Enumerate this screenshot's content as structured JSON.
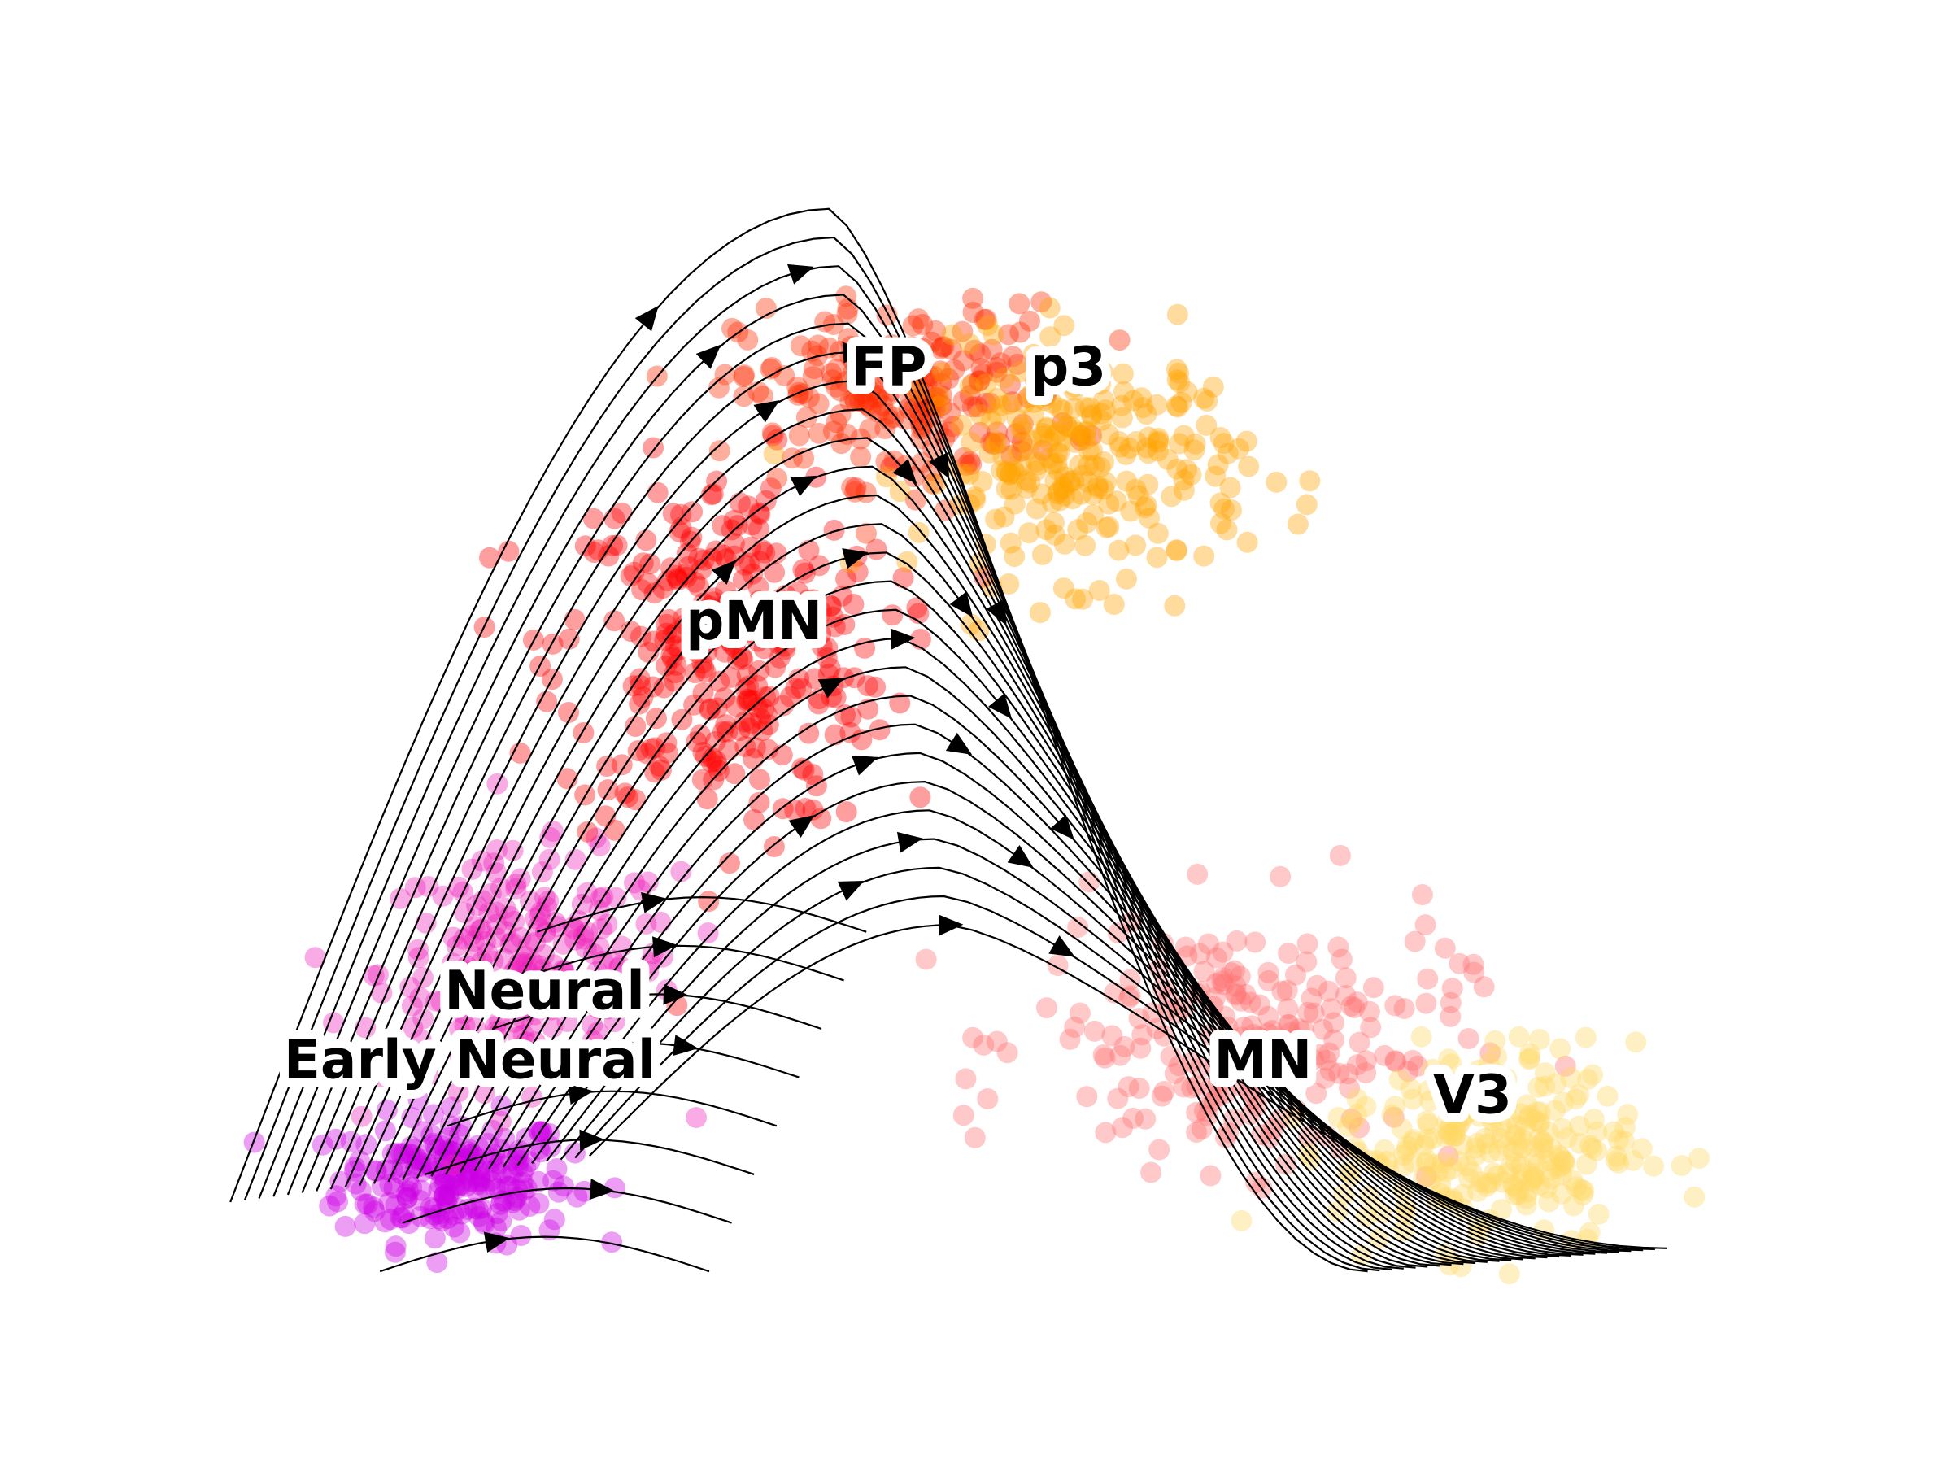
{
  "chart_data": {
    "type": "scatter",
    "subtype": "embedding with velocity streamlines",
    "title": "",
    "xlabel": "",
    "ylabel": "",
    "axes_visible": false,
    "grid": false,
    "legend": "none (cluster labels on plot)",
    "xlim": [
      0,
      100
    ],
    "ylim": [
      0,
      100
    ],
    "clusters": [
      {
        "name": "Early Neural",
        "color": "#cc00e6",
        "center": [
          13,
          12
        ],
        "spread": [
          7,
          5
        ],
        "n": 230
      },
      {
        "name": "Neural",
        "color": "#ee22bb",
        "center": [
          18,
          30
        ],
        "spread": [
          9,
          9
        ],
        "n": 230
      },
      {
        "name": "pMN",
        "color": "#ff0000",
        "center": [
          31,
          58
        ],
        "spread": [
          10,
          14
        ],
        "n": 330
      },
      {
        "name": "FP",
        "color": "#ff2a00",
        "center": [
          43,
          80
        ],
        "spread": [
          10,
          7
        ],
        "n": 220
      },
      {
        "name": "p3",
        "color": "#ffa200",
        "center": [
          55,
          74
        ],
        "spread": [
          10,
          9
        ],
        "n": 260
      },
      {
        "name": "MN",
        "color": "#ff7070",
        "center": [
          66,
          24
        ],
        "spread": [
          13,
          10
        ],
        "n": 230
      },
      {
        "name": "V3",
        "color": "#ffd864",
        "center": [
          82,
          15
        ],
        "spread": [
          9,
          8
        ],
        "n": 260
      }
    ],
    "labels": [
      {
        "text": "Neural",
        "x": 19,
        "y": 28
      },
      {
        "text": "Early Neural",
        "x": 14,
        "y": 22
      },
      {
        "text": "pMN",
        "x": 33,
        "y": 60
      },
      {
        "text": "FP",
        "x": 42,
        "y": 82
      },
      {
        "text": "p3",
        "x": 54,
        "y": 82
      },
      {
        "text": "MN",
        "x": 67,
        "y": 22
      },
      {
        "text": "V3",
        "x": 81,
        "y": 19
      }
    ],
    "streamline_color": "#000000"
  }
}
